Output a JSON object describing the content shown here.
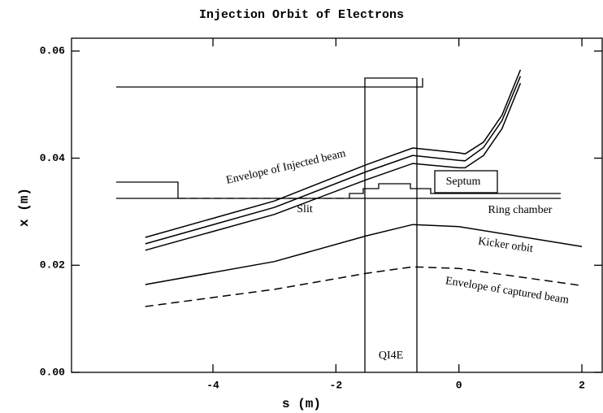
{
  "chart_data": {
    "type": "line",
    "title": "Injection Orbit of Electrons",
    "xlabel": "s (m)",
    "ylabel": "x (m)",
    "xlim": [
      -6.3,
      2.33
    ],
    "ylim": [
      0,
      0.0624
    ],
    "xticks": [
      -4,
      -2,
      0,
      2
    ],
    "yticks": [
      {
        "value": 0,
        "label": "0.00"
      },
      {
        "value": 0.02,
        "label": "0.02"
      },
      {
        "value": 0.04,
        "label": "0.04"
      },
      {
        "value": 0.06,
        "label": "0.06"
      }
    ],
    "color": "#000000",
    "series": [
      {
        "name": "Envelope of Injected beam",
        "x": [
          -5.1,
          -3,
          -1.5,
          -0.75,
          0,
          0.1,
          0.4,
          0.7,
          1.0
        ],
        "values": [
          0.0252,
          0.032,
          0.0388,
          0.0419,
          0.041,
          0.0408,
          0.043,
          0.048,
          0.0565
        ]
      },
      {
        "x": [
          -5.1,
          -3,
          -1.5,
          -0.75,
          0,
          0.1,
          0.4,
          0.7,
          1.0
        ],
        "values": [
          0.024,
          0.0308,
          0.0375,
          0.0405,
          0.0396,
          0.0395,
          0.042,
          0.047,
          0.0553
        ]
      },
      {
        "x": [
          -5.1,
          -3,
          -1.5,
          -0.75,
          0,
          0.1,
          0.4,
          0.7,
          1.0
        ],
        "values": [
          0.0228,
          0.0295,
          0.036,
          0.039,
          0.0382,
          0.0382,
          0.0405,
          0.0455,
          0.054
        ]
      },
      {
        "name": "Kicker orbit",
        "x": [
          -5.1,
          -3,
          -1.5,
          -0.75,
          0,
          2
        ],
        "values": [
          0.0164,
          0.0207,
          0.0255,
          0.0276,
          0.0272,
          0.0235
        ]
      },
      {
        "name": "Envelope of captured beam",
        "dashed": true,
        "x": [
          -5.1,
          -3,
          -1.5,
          -0.75,
          0,
          2
        ],
        "values": [
          0.0123,
          0.0155,
          0.0185,
          0.0197,
          0.0194,
          0.0162
        ]
      }
    ],
    "annotations": [
      "Septum",
      "Slit",
      "Ring chamber",
      "QI4E"
    ]
  }
}
